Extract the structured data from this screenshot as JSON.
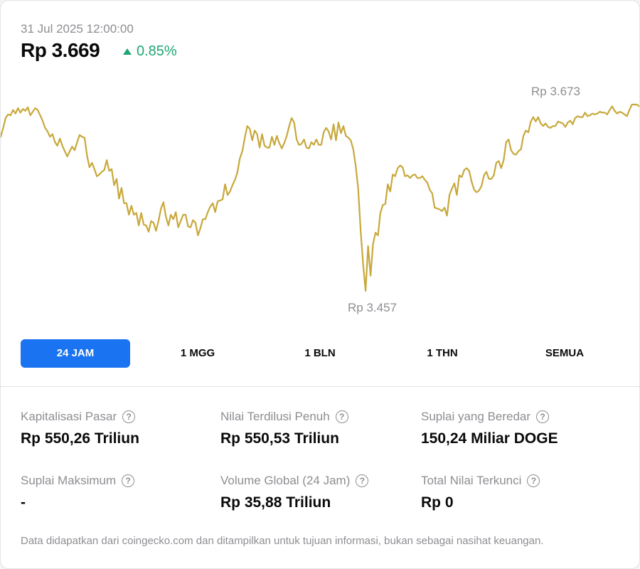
{
  "header": {
    "timestamp": "31 Jul 2025 12:00:00",
    "price": "Rp 3.669",
    "change": "0.85%",
    "change_color": "#1ea672",
    "change_icon": "triangle-up-icon"
  },
  "chart_data": {
    "type": "line",
    "series_color": "#c8a83b",
    "annotations": {
      "max_label": "Rp 3.673",
      "min_label": "Rp 3.457"
    },
    "values": [
      3630,
      3640,
      3651,
      3655,
      3654,
      3660,
      3656,
      3662,
      3657,
      3661,
      3659,
      3663,
      3654,
      3658,
      3662,
      3660,
      3654,
      3648,
      3640,
      3636,
      3630,
      3633,
      3624,
      3620,
      3628,
      3620,
      3614,
      3608,
      3614,
      3619,
      3615,
      3624,
      3632,
      3630,
      3629,
      3609,
      3596,
      3601,
      3594,
      3586,
      3588,
      3591,
      3593,
      3604,
      3592,
      3594,
      3576,
      3583,
      3561,
      3573,
      3556,
      3556,
      3543,
      3553,
      3543,
      3545,
      3531,
      3545,
      3532,
      3531,
      3524,
      3536,
      3534,
      3525,
      3536,
      3550,
      3557,
      3541,
      3531,
      3543,
      3538,
      3546,
      3529,
      3536,
      3543,
      3543,
      3530,
      3529,
      3537,
      3534,
      3520,
      3528,
      3538,
      3538,
      3546,
      3552,
      3556,
      3546,
      3558,
      3559,
      3560,
      3577,
      3565,
      3569,
      3576,
      3582,
      3590,
      3606,
      3614,
      3629,
      3642,
      3639,
      3626,
      3637,
      3633,
      3618,
      3633,
      3620,
      3618,
      3618,
      3630,
      3621,
      3631,
      3623,
      3617,
      3623,
      3631,
      3642,
      3651,
      3646,
      3627,
      3621,
      3622,
      3627,
      3618,
      3617,
      3624,
      3621,
      3627,
      3621,
      3621,
      3635,
      3640,
      3636,
      3627,
      3644,
      3626,
      3646,
      3634,
      3642,
      3631,
      3629,
      3626,
      3616,
      3597,
      3572,
      3525,
      3487,
      3458,
      3508,
      3475,
      3510,
      3523,
      3520,
      3545,
      3554,
      3555,
      3577,
      3569,
      3588,
      3586,
      3595,
      3598,
      3596,
      3586,
      3587,
      3584,
      3587,
      3588,
      3584,
      3584,
      3586,
      3582,
      3579,
      3571,
      3567,
      3551,
      3550,
      3549,
      3547,
      3551,
      3542,
      3565,
      3572,
      3578,
      3565,
      3587,
      3585,
      3593,
      3595,
      3592,
      3580,
      3571,
      3568,
      3570,
      3575,
      3587,
      3591,
      3583,
      3583,
      3587,
      3601,
      3603,
      3595,
      3604,
      3624,
      3627,
      3615,
      3611,
      3610,
      3614,
      3616,
      3631,
      3637,
      3635,
      3647,
      3652,
      3647,
      3652,
      3645,
      3642,
      3645,
      3641,
      3640,
      3642,
      3642,
      3647,
      3646,
      3645,
      3641,
      3646,
      3648,
      3644,
      3651,
      3653,
      3652,
      3652,
      3657,
      3653,
      3654,
      3656,
      3655,
      3656,
      3658,
      3657,
      3657,
      3655,
      3660,
      3664,
      3659,
      3656,
      3658,
      3657,
      3655,
      3653,
      3660,
      3666,
      3666,
      3666,
      3664
    ]
  },
  "timeframes": {
    "items": [
      {
        "label": "24 JAM",
        "active": true
      },
      {
        "label": "1 MGG",
        "active": false
      },
      {
        "label": "1 BLN",
        "active": false
      },
      {
        "label": "1 THN",
        "active": false
      },
      {
        "label": "SEMUA",
        "active": false
      }
    ],
    "active_color": "#1a73f0"
  },
  "stats": [
    {
      "label": "Kapitalisasi Pasar",
      "value": "Rp 550,26 Triliun",
      "icon": "question-circle-icon"
    },
    {
      "label": "Nilai Terdilusi Penuh",
      "value": "Rp 550,53 Triliun",
      "icon": "question-circle-icon"
    },
    {
      "label": "Suplai yang Beredar",
      "value": "150,24 Miliar DOGE",
      "icon": "question-circle-icon"
    },
    {
      "label": "Suplai Maksimum",
      "value": "-",
      "icon": "question-circle-icon"
    },
    {
      "label": "Volume Global (24 Jam)",
      "value": "Rp 35,88 Triliun",
      "icon": "question-circle-icon"
    },
    {
      "label": "Total Nilai Terkunci",
      "value": "Rp 0",
      "icon": "question-circle-icon"
    }
  ],
  "disclaimer": "Data didapatkan dari coingecko.com dan ditampilkan untuk tujuan informasi, bukan sebagai nasihat keuangan."
}
